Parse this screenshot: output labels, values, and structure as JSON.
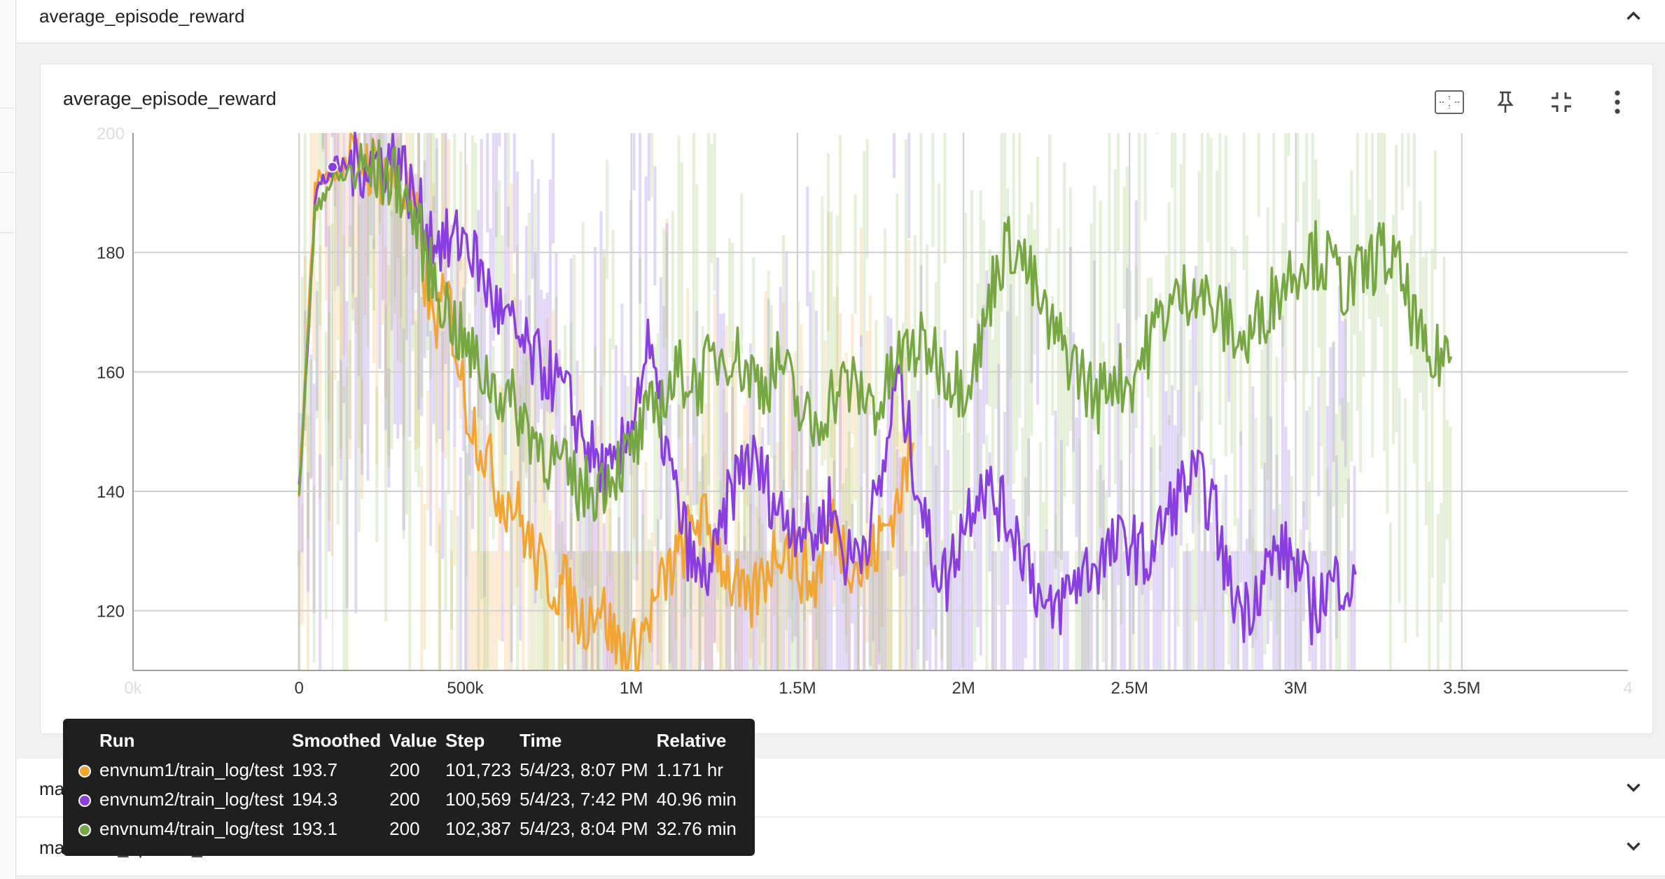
{
  "sections": {
    "top": {
      "title": "average_episode_reward"
    },
    "second": {
      "title": "maximum_episode_length"
    },
    "third": {
      "title": "maximum_episode_reward"
    }
  },
  "card": {
    "title": "average_episode_reward"
  },
  "toolbar": {
    "fit_icon": "fit-to-domain-icon",
    "pin_icon": "pin-icon",
    "collapse_icon": "fullscreen-exit-icon",
    "more_icon": "more-vert-icon"
  },
  "tooltip": {
    "headers": [
      "Run",
      "Smoothed",
      "Value",
      "Step",
      "Time",
      "Relative"
    ],
    "rows": [
      {
        "color": "#f2a533",
        "run": "envnum1/train_log/test",
        "smoothed": "193.7",
        "value": "200",
        "step": "101,723",
        "time": "5/4/23, 8:07 PM",
        "relative": "1.171 hr"
      },
      {
        "color": "#8a3ee0",
        "run": "envnum2/train_log/test",
        "smoothed": "194.3",
        "value": "200",
        "step": "100,569",
        "time": "5/4/23, 7:42 PM",
        "relative": "40.96 min"
      },
      {
        "color": "#76a743",
        "run": "envnum4/train_log/test",
        "smoothed": "193.1",
        "value": "200",
        "step": "102,387",
        "time": "5/4/23, 8:04 PM",
        "relative": "32.76 min"
      }
    ]
  },
  "chart_data": {
    "type": "line",
    "title": "average_episode_reward",
    "xlim": [
      -500000,
      4000000
    ],
    "ylim": [
      110,
      200
    ],
    "x_ticks": [
      "0k",
      "0",
      "500k",
      "1M",
      "1.5M",
      "2M",
      "2.5M",
      "3M",
      "3.5M",
      "4"
    ],
    "x_tick_values": [
      -500000,
      0,
      500000,
      1000000,
      1500000,
      2000000,
      2500000,
      3000000,
      3500000,
      4000000
    ],
    "y_ticks": [
      "200",
      "180",
      "160",
      "140",
      "120"
    ],
    "y_tick_values": [
      200,
      180,
      160,
      140,
      120
    ],
    "grid": true,
    "series": [
      {
        "name": "envnum1/train_log/test",
        "color": "#f2a533",
        "x": [
          0,
          50000,
          100000,
          200000,
          300000,
          350000,
          400000,
          450000,
          500000,
          550000,
          600000,
          650000,
          700000,
          750000,
          800000,
          850000,
          900000,
          950000,
          1000000,
          1050000,
          1100000,
          1150000,
          1200000,
          1250000,
          1300000,
          1350000,
          1400000,
          1450000,
          1500000,
          1550000,
          1600000,
          1650000,
          1700000,
          1750000,
          1800000,
          1850000
        ],
        "y": [
          140,
          192,
          194,
          195,
          192,
          186,
          168,
          172,
          155,
          148,
          140,
          138,
          130,
          125,
          124,
          118,
          122,
          115,
          112,
          118,
          125,
          130,
          136,
          132,
          125,
          120,
          126,
          132,
          128,
          124,
          135,
          130,
          126,
          132,
          138,
          148
        ]
      },
      {
        "name": "envnum2/train_log/test",
        "color": "#8a3ee0",
        "x": [
          0,
          50000,
          100000,
          200000,
          300000,
          350000,
          400000,
          450000,
          500000,
          550000,
          600000,
          650000,
          700000,
          750000,
          800000,
          850000,
          900000,
          950000,
          1000000,
          1050000,
          1100000,
          1150000,
          1200000,
          1250000,
          1300000,
          1350000,
          1400000,
          1450000,
          1500000,
          1550000,
          1600000,
          1650000,
          1700000,
          1750000,
          1800000,
          1850000,
          1900000,
          1950000,
          2000000,
          2050000,
          2100000,
          2150000,
          2200000,
          2250000,
          2300000,
          2350000,
          2400000,
          2450000,
          2500000,
          2550000,
          2600000,
          2650000,
          2700000,
          2750000,
          2800000,
          2850000,
          2900000,
          2950000,
          3000000,
          3050000,
          3100000,
          3150000,
          3180000
        ],
        "y": [
          140,
          190,
          194,
          195,
          196,
          188,
          183,
          181,
          183,
          176,
          170,
          166,
          162,
          160,
          156,
          150,
          144,
          142,
          152,
          164,
          148,
          135,
          125,
          128,
          140,
          146,
          142,
          136,
          135,
          132,
          138,
          128,
          132,
          140,
          160,
          145,
          130,
          125,
          135,
          142,
          138,
          134,
          128,
          118,
          122,
          126,
          128,
          130,
          132,
          128,
          134,
          140,
          142,
          138,
          124,
          120,
          126,
          130,
          128,
          120,
          124,
          126,
          122
        ]
      },
      {
        "name": "envnum4/train_log/test",
        "color": "#76a743",
        "x": [
          0,
          50000,
          100000,
          200000,
          300000,
          350000,
          400000,
          450000,
          500000,
          550000,
          600000,
          650000,
          700000,
          750000,
          800000,
          850000,
          900000,
          950000,
          1000000,
          1050000,
          1100000,
          1150000,
          1200000,
          1250000,
          1300000,
          1350000,
          1400000,
          1450000,
          1500000,
          1550000,
          1600000,
          1650000,
          1700000,
          1750000,
          1800000,
          1850000,
          1900000,
          1950000,
          2000000,
          2050000,
          2100000,
          2150000,
          2200000,
          2250000,
          2300000,
          2350000,
          2400000,
          2450000,
          2500000,
          2550000,
          2600000,
          2650000,
          2700000,
          2750000,
          2800000,
          2850000,
          2900000,
          2950000,
          3000000,
          3050000,
          3100000,
          3150000,
          3200000,
          3250000,
          3300000,
          3350000,
          3400000,
          3450000,
          3470000
        ],
        "y": [
          140,
          188,
          192,
          194,
          192,
          185,
          176,
          170,
          164,
          160,
          157,
          154,
          150,
          146,
          143,
          140,
          141,
          144,
          146,
          152,
          156,
          160,
          158,
          162,
          164,
          160,
          158,
          162,
          154,
          150,
          156,
          158,
          156,
          154,
          162,
          164,
          164,
          160,
          158,
          164,
          178,
          182,
          176,
          168,
          164,
          160,
          155,
          160,
          158,
          164,
          170,
          172,
          175,
          170,
          168,
          164,
          170,
          174,
          178,
          180,
          178,
          174,
          176,
          180,
          178,
          170,
          160,
          164,
          161
        ]
      }
    ]
  }
}
